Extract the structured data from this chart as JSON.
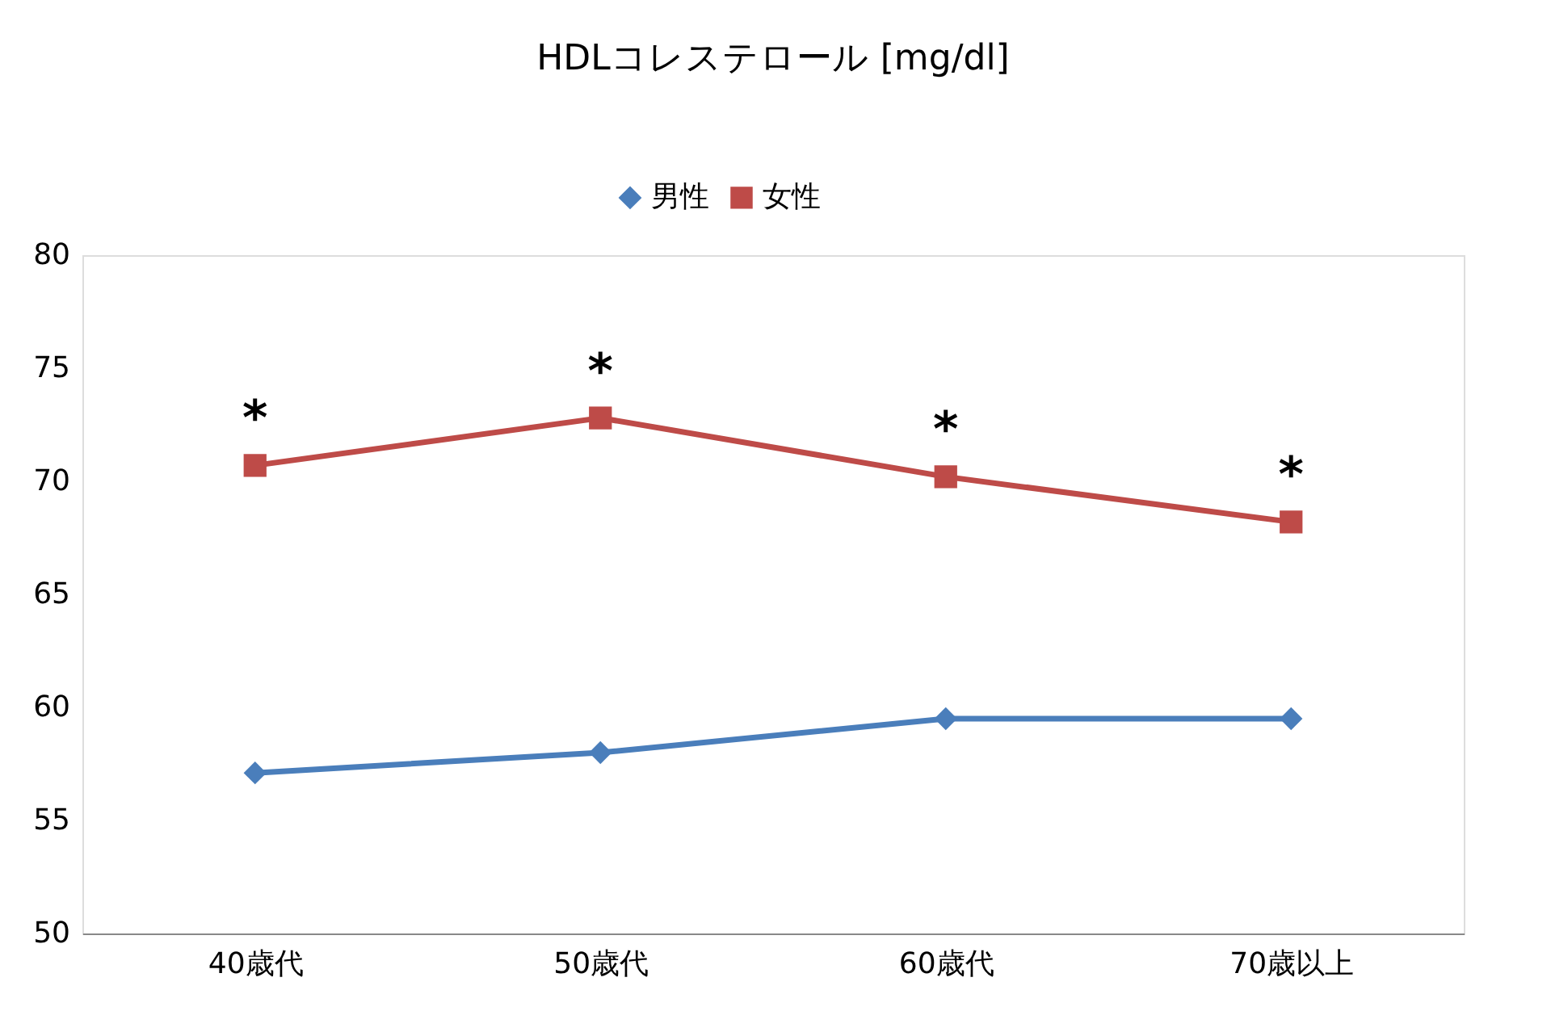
{
  "chart_data": {
    "type": "line",
    "title": "HDLコレステロール [mg/dl]",
    "categories": [
      "40歳代",
      "50歳代",
      "60歳代",
      "70歳以上"
    ],
    "series": [
      {
        "name": "男性",
        "color": "#4a7ebb",
        "marker": "diamond",
        "values": [
          57.1,
          58.0,
          59.5,
          59.5
        ]
      },
      {
        "name": "女性",
        "color": "#be4b48",
        "marker": "square",
        "values": [
          70.7,
          72.8,
          70.2,
          68.2
        ]
      }
    ],
    "ylim": [
      50,
      80
    ],
    "yticks": [
      50,
      55,
      60,
      65,
      70,
      75,
      80
    ],
    "grid": false,
    "legend": "top",
    "line_style": "solid",
    "annotations": [
      {
        "text": "*",
        "x": "40歳代",
        "y": 70.7
      },
      {
        "text": "*",
        "x": "50歳代",
        "y": 72.8
      },
      {
        "text": "*",
        "x": "60歳代",
        "y": 70.2
      },
      {
        "text": "*",
        "x": "70歳以上",
        "y": 68.2
      }
    ]
  }
}
